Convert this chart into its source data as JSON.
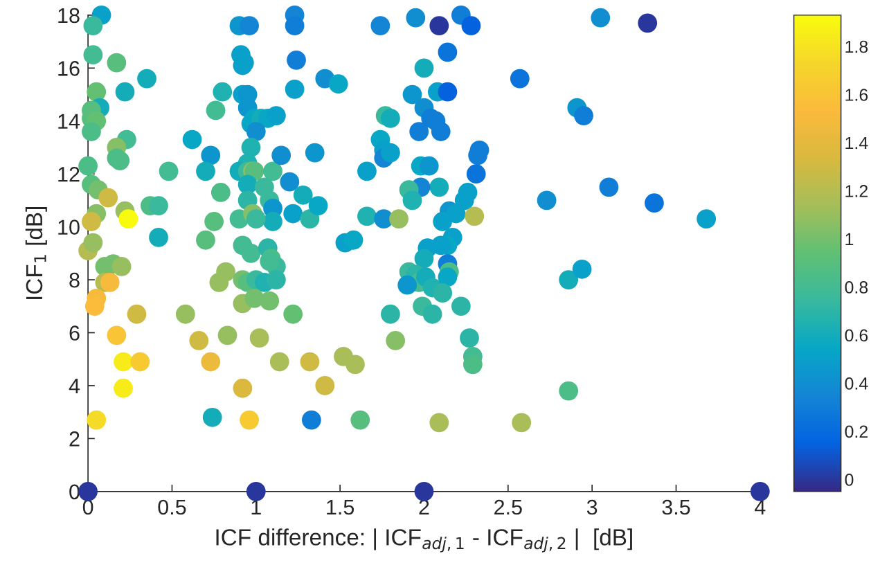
{
  "chart_data": {
    "type": "scatter",
    "xlabel": "ICF difference: | ICF$_{adj,1}$ - ICF$_{adj,2}$ |  [dB]",
    "ylabel": "ICF$_{1}$ [dB]",
    "xlim": [
      0,
      4
    ],
    "ylim": [
      0,
      18
    ],
    "xticks": [
      0,
      0.5,
      1,
      1.5,
      2,
      2.5,
      3,
      3.5,
      4
    ],
    "yticks": [
      0,
      2,
      4,
      6,
      8,
      10,
      12,
      14,
      16,
      18
    ],
    "clim": [
      -0.05,
      1.93
    ],
    "cticks": [
      0,
      0.2,
      0.4,
      0.6,
      0.8,
      1,
      1.2,
      1.4,
      1.6,
      1.8
    ],
    "marker": "circle",
    "grid": false,
    "legend": false,
    "x": [
      0.08,
      0.03,
      0.03,
      0.05,
      0.07,
      0.02,
      0.02,
      0.05,
      0.02,
      0.0,
      0.02,
      0.06,
      0.12,
      0.05,
      0.02,
      0.0,
      0.03,
      0.1,
      0.15,
      0.2,
      0.1,
      0.13,
      0.05,
      0.04,
      0.17,
      0.21,
      0.31,
      0.21,
      0.05,
      0.17,
      0.22,
      0.35,
      0.23,
      0.17,
      0.17,
      0.19,
      0.22,
      0.24,
      0.37,
      0.42,
      0.42,
      0.48,
      0.29,
      0.58,
      0.62,
      0.73,
      0.7,
      0.76,
      0.8,
      0.79,
      0.75,
      0.7,
      0.82,
      0.78,
      0.83,
      0.66,
      0.73,
      0.74,
      0.9,
      0.96,
      0.91,
      0.93,
      0.92,
      0.92,
      0.95,
      0.95,
      0.97,
      0.99,
      1.03,
      1.07,
      1.12,
      1.0,
      0.97,
      0.95,
      0.9,
      0.95,
      0.98,
      0.99,
      1.1,
      1.15,
      0.95,
      0.95,
      1.05,
      1.08,
      1.1,
      1.1,
      0.9,
      0.98,
      1.0,
      0.92,
      0.97,
      1.07,
      1.09,
      1.12,
      1.08,
      0.92,
      0.95,
      1.0,
      1.05,
      1.12,
      0.92,
      0.99,
      1.08,
      1.02,
      0.92,
      0.96,
      1.14,
      1.32,
      1.22,
      1.23,
      1.23,
      1.24,
      1.23,
      1.2,
      1.28,
      1.22,
      1.32,
      1.35,
      1.37,
      1.41,
      1.49,
      1.41,
      1.52,
      1.59,
      1.33,
      1.62,
      1.53,
      1.58,
      1.66,
      1.66,
      1.74,
      1.74,
      1.76,
      1.76,
      1.8,
      1.77,
      1.8,
      1.76,
      1.85,
      1.8,
      1.83,
      1.95,
      2.09,
      2.22,
      2.28,
      2.14,
      2.0,
      1.93,
      2.08,
      2.14,
      2.0,
      2.04,
      2.07,
      1.97,
      2.1,
      2.33,
      2.32,
      2.31,
      1.98,
      2.03,
      2.09,
      1.98,
      1.91,
      1.93,
      2.26,
      2.24,
      2.15,
      2.19,
      2.11,
      2.17,
      2.14,
      2.1,
      2.02,
      2.0,
      1.91,
      1.95,
      1.97,
      1.9,
      2.01,
      2.05,
      2.14,
      2.15,
      2.14,
      2.11,
      1.99,
      2.05,
      2.22,
      2.27,
      2.29,
      2.29,
      2.3,
      2.09,
      2.58,
      2.57,
      2.73,
      2.86,
      2.94,
      2.91,
      2.95,
      3.05,
      3.33,
      3.1,
      3.37,
      3.68,
      2.86,
      0,
      1,
      2,
      4
    ],
    "values": [
      18.0,
      17.6,
      16.5,
      15.1,
      14.5,
      14.4,
      14.1,
      14.0,
      13.6,
      12.3,
      11.6,
      11.4,
      11.1,
      10.5,
      10.2,
      9.1,
      9.4,
      8.5,
      8.6,
      8.5,
      7.9,
      7.9,
      7.3,
      7.0,
      5.9,
      4.9,
      4.9,
      3.9,
      2.7,
      16.2,
      15.1,
      15.6,
      13.3,
      13.0,
      12.6,
      12.5,
      10.6,
      10.3,
      10.8,
      10.8,
      9.6,
      12.1,
      6.7,
      6.7,
      13.3,
      12.7,
      12.1,
      14.4,
      15.1,
      11.3,
      10.2,
      9.5,
      8.3,
      7.9,
      5.9,
      5.7,
      4.9,
      2.8,
      17.6,
      17.6,
      16.5,
      16.2,
      16.1,
      15.0,
      15.0,
      14.5,
      13.9,
      14.1,
      14.1,
      14.1,
      14.2,
      13.6,
      13.0,
      12.4,
      12.1,
      12.1,
      12.1,
      12.1,
      12.1,
      12.7,
      11.6,
      11.0,
      11.5,
      11.0,
      10.7,
      10.2,
      10.3,
      10.5,
      10.3,
      9.3,
      9.0,
      9.2,
      8.8,
      8.5,
      8.7,
      8.0,
      7.9,
      8.0,
      7.9,
      8.0,
      7.1,
      7.3,
      7.2,
      5.8,
      3.9,
      2.7,
      4.9,
      4.9,
      6.7,
      18.0,
      17.6,
      16.3,
      15.2,
      11.7,
      11.2,
      10.5,
      10.3,
      12.8,
      10.8,
      15.6,
      15.4,
      4.0,
      5.1,
      4.8,
      2.7,
      2.7,
      9.4,
      9.5,
      12.1,
      10.4,
      17.6,
      13.3,
      12.9,
      12.6,
      12.8,
      14.2,
      14.1,
      10.3,
      10.3,
      6.7,
      5.7,
      17.9,
      17.6,
      18.0,
      17.6,
      16.6,
      16.0,
      15.0,
      15.1,
      15.1,
      14.5,
      14.1,
      14.0,
      13.6,
      13.6,
      12.9,
      12.7,
      12.0,
      12.3,
      12.3,
      11.5,
      11.5,
      11.4,
      11.0,
      11.3,
      11.0,
      10.6,
      10.5,
      10.2,
      9.6,
      9.3,
      9.3,
      9.2,
      8.8,
      8.3,
      8.2,
      7.9,
      7.8,
      8.1,
      7.7,
      8.6,
      8.3,
      8.1,
      7.5,
      7.0,
      6.7,
      7.0,
      5.8,
      5.1,
      4.8,
      10.4,
      2.6,
      2.6,
      15.6,
      11.0,
      8.0,
      8.4,
      14.5,
      14.2,
      17.9,
      17.7,
      11.5,
      10.9,
      10.3,
      3.8,
      0,
      0,
      0,
      0
    ],
    "cvalues": [
      0.5,
      0.75,
      0.8,
      0.95,
      0.6,
      0.9,
      0.9,
      0.95,
      0.85,
      0.85,
      0.9,
      1.0,
      1.3,
      1.05,
      1.3,
      1.2,
      1.1,
      1.0,
      1.0,
      1.1,
      1.2,
      1.5,
      1.5,
      1.55,
      1.6,
      1.85,
      1.65,
      1.85,
      1.75,
      0.9,
      0.6,
      0.6,
      0.8,
      1.05,
      0.85,
      0.85,
      1.1,
      1.93,
      0.85,
      0.75,
      0.6,
      0.8,
      1.3,
      1.1,
      0.55,
      0.45,
      0.6,
      0.8,
      0.65,
      0.85,
      0.9,
      0.9,
      1.1,
      1.1,
      1.1,
      1.3,
      1.45,
      0.6,
      0.45,
      0.35,
      0.5,
      0.5,
      0.5,
      0.5,
      0.45,
      0.45,
      0.55,
      0.55,
      0.6,
      0.55,
      0.5,
      0.4,
      0.65,
      0.65,
      0.6,
      0.75,
      1.1,
      0.9,
      0.8,
      0.4,
      0.6,
      0.7,
      0.75,
      0.75,
      0.45,
      0.6,
      0.8,
      1.05,
      0.75,
      0.8,
      0.8,
      0.7,
      0.85,
      0.75,
      0.8,
      1.0,
      0.9,
      0.75,
      0.65,
      0.7,
      1.1,
      1.0,
      1.0,
      1.15,
      1.35,
      1.65,
      1.15,
      1.3,
      0.95,
      0.35,
      0.3,
      0.3,
      0.5,
      0.4,
      0.6,
      0.5,
      0.7,
      0.45,
      0.55,
      0.4,
      0.55,
      1.3,
      1.15,
      1.15,
      0.3,
      0.9,
      0.5,
      0.55,
      0.5,
      0.65,
      0.35,
      0.55,
      0.5,
      0.35,
      0.5,
      0.75,
      0.6,
      0.4,
      1.1,
      0.7,
      1.05,
      0.4,
      0.0,
      0.3,
      0.15,
      0.25,
      0.6,
      0.45,
      0.5,
      0.15,
      0.4,
      0.3,
      0.3,
      0.3,
      0.3,
      0.3,
      0.3,
      0.25,
      0.55,
      0.45,
      0.6,
      0.35,
      0.75,
      0.65,
      0.5,
      0.5,
      0.45,
      0.5,
      0.5,
      0.5,
      0.55,
      0.5,
      0.5,
      0.6,
      0.75,
      0.7,
      0.8,
      0.45,
      0.6,
      0.65,
      0.3,
      0.85,
      0.55,
      0.7,
      0.75,
      0.7,
      0.7,
      0.7,
      0.8,
      0.85,
      1.2,
      1.15,
      1.15,
      0.25,
      0.4,
      0.6,
      0.5,
      0.45,
      0.3,
      0.4,
      0.0,
      0.3,
      0.25,
      0.5,
      0.85,
      0,
      0,
      0,
      0
    ]
  }
}
